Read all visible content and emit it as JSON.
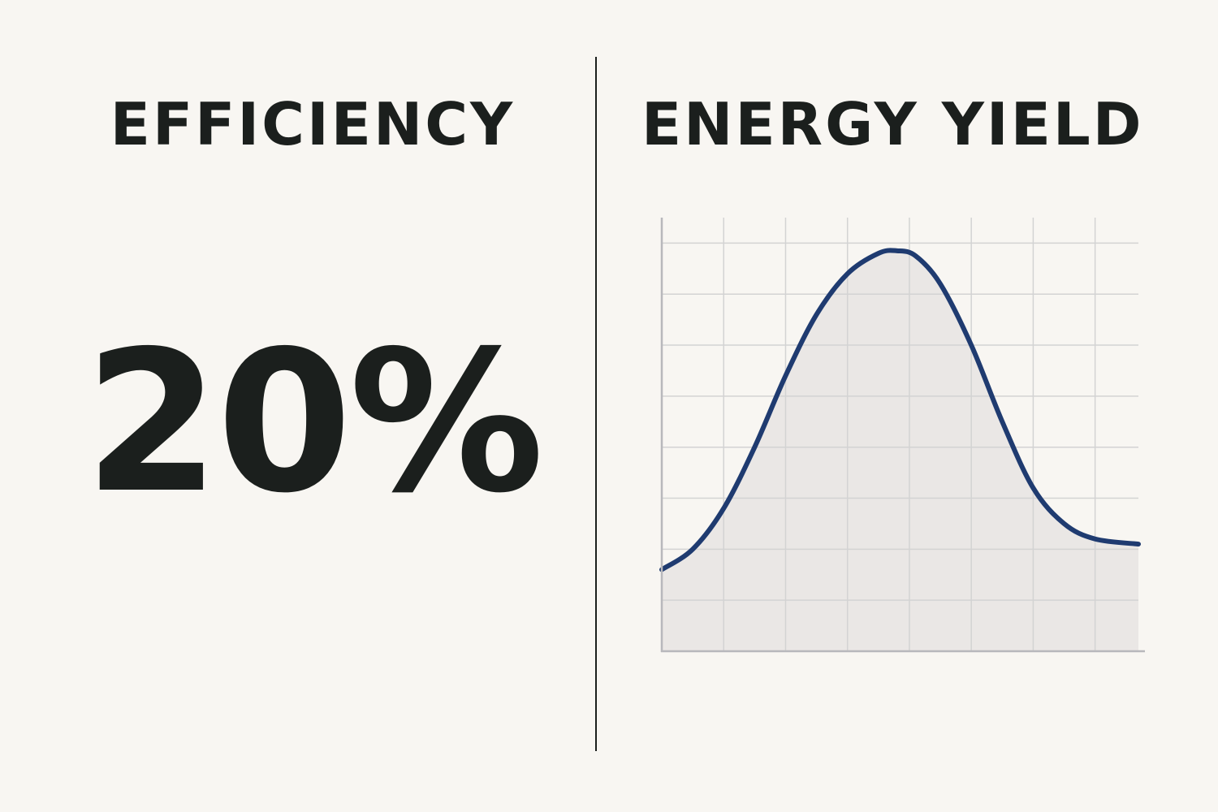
{
  "left_panel": {
    "heading": "EFFICIENCY",
    "value": "20%"
  },
  "right_panel": {
    "heading": "ENERGY YIELD"
  },
  "chart_data": {
    "type": "area",
    "title": "ENERGY YIELD",
    "xlabel": "",
    "ylabel": "",
    "grid": true,
    "xlim": [
      0,
      7.7
    ],
    "ylim": [
      0,
      8.5
    ],
    "x": [
      0,
      0.5,
      1,
      1.5,
      2,
      2.5,
      3,
      3.5,
      3.8,
      4.1,
      4.5,
      5,
      5.5,
      6,
      6.5,
      7,
      7.7
    ],
    "series": [
      {
        "values": [
          1.6,
          2.0,
          2.8,
          4.0,
          5.4,
          6.6,
          7.4,
          7.8,
          7.85,
          7.75,
          7.2,
          6.0,
          4.5,
          3.2,
          2.5,
          2.2,
          2.1
        ],
        "color": "#1f3b70",
        "fill": "#e8e6e3"
      }
    ],
    "colors": {
      "grid": "#d3d3d3",
      "axis": "#b8b8bc",
      "line": "#1f3b70",
      "area": "#e8e6e3"
    }
  }
}
